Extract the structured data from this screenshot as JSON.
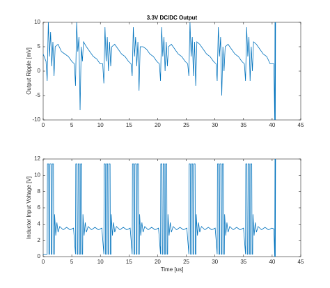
{
  "chart_data": [
    {
      "type": "line",
      "title": "3.3V DC/DC Output",
      "y_label": "Output Ripple [mV]",
      "color": "#0072bd",
      "xlim": [
        0,
        45
      ],
      "xticks": [
        0,
        5,
        10,
        15,
        20,
        25,
        30,
        35,
        40,
        45
      ],
      "ylim": [
        -10,
        10
      ],
      "yticks": [
        -10,
        -5,
        0,
        5,
        10
      ],
      "x": [
        0,
        0.5,
        0.7,
        0.9,
        1.1,
        1.3,
        1.5,
        1.7,
        1.9,
        2.1,
        2.6,
        3.2,
        3.8,
        4.4,
        5.0,
        5.45,
        5.65,
        5.85,
        6.05,
        6.25,
        6.45,
        6.65,
        6.85,
        7.05,
        7.55,
        8.15,
        8.75,
        9.35,
        9.95,
        10.4,
        10.6,
        10.8,
        11.0,
        11.2,
        11.4,
        11.6,
        11.8,
        12.0,
        12.5,
        13.1,
        13.7,
        14.3,
        14.9,
        15.35,
        15.55,
        15.75,
        15.95,
        16.15,
        16.35,
        16.55,
        16.75,
        16.95,
        17.45,
        18.05,
        18.65,
        19.25,
        19.85,
        20.3,
        20.5,
        20.7,
        20.9,
        21.1,
        21.3,
        21.5,
        21.7,
        21.9,
        22.4,
        23.0,
        23.6,
        24.2,
        24.8,
        25.25,
        25.45,
        25.65,
        25.85,
        26.05,
        26.25,
        26.45,
        26.65,
        26.85,
        27.35,
        27.95,
        28.55,
        29.15,
        29.75,
        30.2,
        30.4,
        30.6,
        30.8,
        31.0,
        31.2,
        31.4,
        31.6,
        31.8,
        32.3,
        32.9,
        33.5,
        34.1,
        34.7,
        35.15,
        35.35,
        35.55,
        35.75,
        35.95,
        36.15,
        36.35,
        36.55,
        36.75,
        37.25,
        37.85,
        38.45,
        39.05,
        39.65,
        40.3,
        40.45,
        40.5,
        40.55,
        40.6
      ],
      "values": [
        3.5,
        2,
        -2,
        10,
        3,
        8,
        1,
        6,
        -1,
        5,
        5.5,
        4,
        3.5,
        3,
        2,
        1.5,
        -3,
        10,
        4,
        7,
        -8,
        5,
        2,
        6,
        5,
        4,
        3,
        2.5,
        1.5,
        1.5,
        -2.5,
        9,
        2,
        7,
        0,
        6,
        1,
        5,
        5.5,
        4.5,
        3.5,
        3,
        2,
        1.5,
        -1,
        9,
        3,
        7,
        1,
        6,
        -4,
        5,
        5,
        4.5,
        3.5,
        3,
        2,
        1.5,
        -2,
        9,
        3,
        7,
        0,
        6,
        1,
        5,
        5.5,
        4.5,
        3.5,
        3,
        2,
        1.5,
        -1,
        10,
        3,
        7,
        -1,
        6,
        -3,
        6,
        5.5,
        4.5,
        3.5,
        3,
        2,
        1.5,
        -2,
        9,
        3,
        7,
        -5,
        5,
        0,
        5,
        5.5,
        4.5,
        3.5,
        3,
        2,
        1.5,
        -2,
        9,
        3,
        7,
        -2,
        5,
        0,
        6,
        5.5,
        4.5,
        3.5,
        3,
        1.5,
        1.5,
        -10,
        10,
        -10,
        10
      ]
    },
    {
      "type": "line",
      "y_label": "Inductor Input Voltage [V]",
      "x_label": "Time [us]",
      "color": "#0072bd",
      "xlim": [
        0,
        45
      ],
      "xticks": [
        0,
        5,
        10,
        15,
        20,
        25,
        30,
        35,
        40,
        45
      ],
      "ylim": [
        0,
        12
      ],
      "yticks": [
        0,
        2,
        4,
        6,
        8,
        10,
        12
      ],
      "x": [
        0,
        0.7,
        0.75,
        0.95,
        1.0,
        1.12,
        1.17,
        1.37,
        1.42,
        1.54,
        1.59,
        1.79,
        1.84,
        1.95,
        2.0,
        2.2,
        2.4,
        2.6,
        2.9,
        3.5,
        4.1,
        4.7,
        5.3,
        5.65,
        5.7,
        5.9,
        5.95,
        6.07,
        6.12,
        6.32,
        6.37,
        6.49,
        6.54,
        6.74,
        6.79,
        6.9,
        6.95,
        7.15,
        7.35,
        7.55,
        7.85,
        8.45,
        9.05,
        9.65,
        10.25,
        10.6,
        10.65,
        10.85,
        10.9,
        11.02,
        11.07,
        11.27,
        11.32,
        11.44,
        11.49,
        11.69,
        11.74,
        11.85,
        11.9,
        12.1,
        12.3,
        12.5,
        12.8,
        13.4,
        14.0,
        14.6,
        15.2,
        15.55,
        15.6,
        15.8,
        15.85,
        15.97,
        16.02,
        16.22,
        16.27,
        16.39,
        16.44,
        16.64,
        16.69,
        16.8,
        16.85,
        17.05,
        17.25,
        17.45,
        17.75,
        18.35,
        18.95,
        19.55,
        20.15,
        20.5,
        20.55,
        20.75,
        20.8,
        20.92,
        20.97,
        21.17,
        21.22,
        21.34,
        21.39,
        21.59,
        21.64,
        21.75,
        21.8,
        22.0,
        22.2,
        22.4,
        22.7,
        23.3,
        23.9,
        24.5,
        25.1,
        25.45,
        25.5,
        25.7,
        25.75,
        25.87,
        25.92,
        26.12,
        26.17,
        26.29,
        26.34,
        26.54,
        26.59,
        26.7,
        26.75,
        26.95,
        27.15,
        27.35,
        27.65,
        28.25,
        28.85,
        29.45,
        30.05,
        30.4,
        30.45,
        30.65,
        30.7,
        30.82,
        30.87,
        31.07,
        31.12,
        31.24,
        31.29,
        31.49,
        31.54,
        31.65,
        31.7,
        31.9,
        32.1,
        32.3,
        32.6,
        33.2,
        33.8,
        34.4,
        35.0,
        35.35,
        35.4,
        35.6,
        35.65,
        35.77,
        35.82,
        36.02,
        36.07,
        36.19,
        36.24,
        36.44,
        36.49,
        36.6,
        36.65,
        36.85,
        37.05,
        37.25,
        37.55,
        38.15,
        38.75,
        39.35,
        39.95,
        40.3,
        40.45,
        40.5,
        40.55,
        40.6
      ],
      "values": [
        0.3,
        0.3,
        11.4,
        11.4,
        0.3,
        0.3,
        11.4,
        11.4,
        0.3,
        0.3,
        11.4,
        11.4,
        0.3,
        0.3,
        5.2,
        2.6,
        4.2,
        3.0,
        3.7,
        3.3,
        3.6,
        3.3,
        3.5,
        0.3,
        11.4,
        11.4,
        0.3,
        0.3,
        11.4,
        11.4,
        0.3,
        0.3,
        11.4,
        11.4,
        0.3,
        0.3,
        5.2,
        2.6,
        4.2,
        3.0,
        3.7,
        3.3,
        3.6,
        3.3,
        3.5,
        0.3,
        11.4,
        11.4,
        0.3,
        0.3,
        11.4,
        11.4,
        0.3,
        0.3,
        11.4,
        11.4,
        0.3,
        0.3,
        5.2,
        2.6,
        4.2,
        3.0,
        3.7,
        3.3,
        3.6,
        3.3,
        3.5,
        0.3,
        11.4,
        11.4,
        0.3,
        0.3,
        11.4,
        11.4,
        0.3,
        0.3,
        11.4,
        11.4,
        0.3,
        0.3,
        5.2,
        2.6,
        4.2,
        3.0,
        3.7,
        3.3,
        3.6,
        3.3,
        3.5,
        0.3,
        11.4,
        11.4,
        0.3,
        0.3,
        11.4,
        11.4,
        0.3,
        0.3,
        11.4,
        11.4,
        0.3,
        0.3,
        5.2,
        2.6,
        4.2,
        3.0,
        3.7,
        3.3,
        3.6,
        3.3,
        3.5,
        0.3,
        11.4,
        11.4,
        0.3,
        0.3,
        11.4,
        11.4,
        0.3,
        0.3,
        11.4,
        11.4,
        0.3,
        0.3,
        5.2,
        2.6,
        4.2,
        3.0,
        3.7,
        3.3,
        3.6,
        3.3,
        3.5,
        0.3,
        11.4,
        11.4,
        0.3,
        0.3,
        11.4,
        11.4,
        0.3,
        0.3,
        11.4,
        11.4,
        0.3,
        0.3,
        5.2,
        2.6,
        4.2,
        3.0,
        3.7,
        3.3,
        3.6,
        3.3,
        3.5,
        0.3,
        11.4,
        11.4,
        0.3,
        0.3,
        11.4,
        11.4,
        0.3,
        0.3,
        11.4,
        11.4,
        0.3,
        0.3,
        5.2,
        2.6,
        4.2,
        3.0,
        3.7,
        3.3,
        3.6,
        3.3,
        3.5,
        3.4,
        0,
        12,
        0,
        12
      ]
    }
  ]
}
